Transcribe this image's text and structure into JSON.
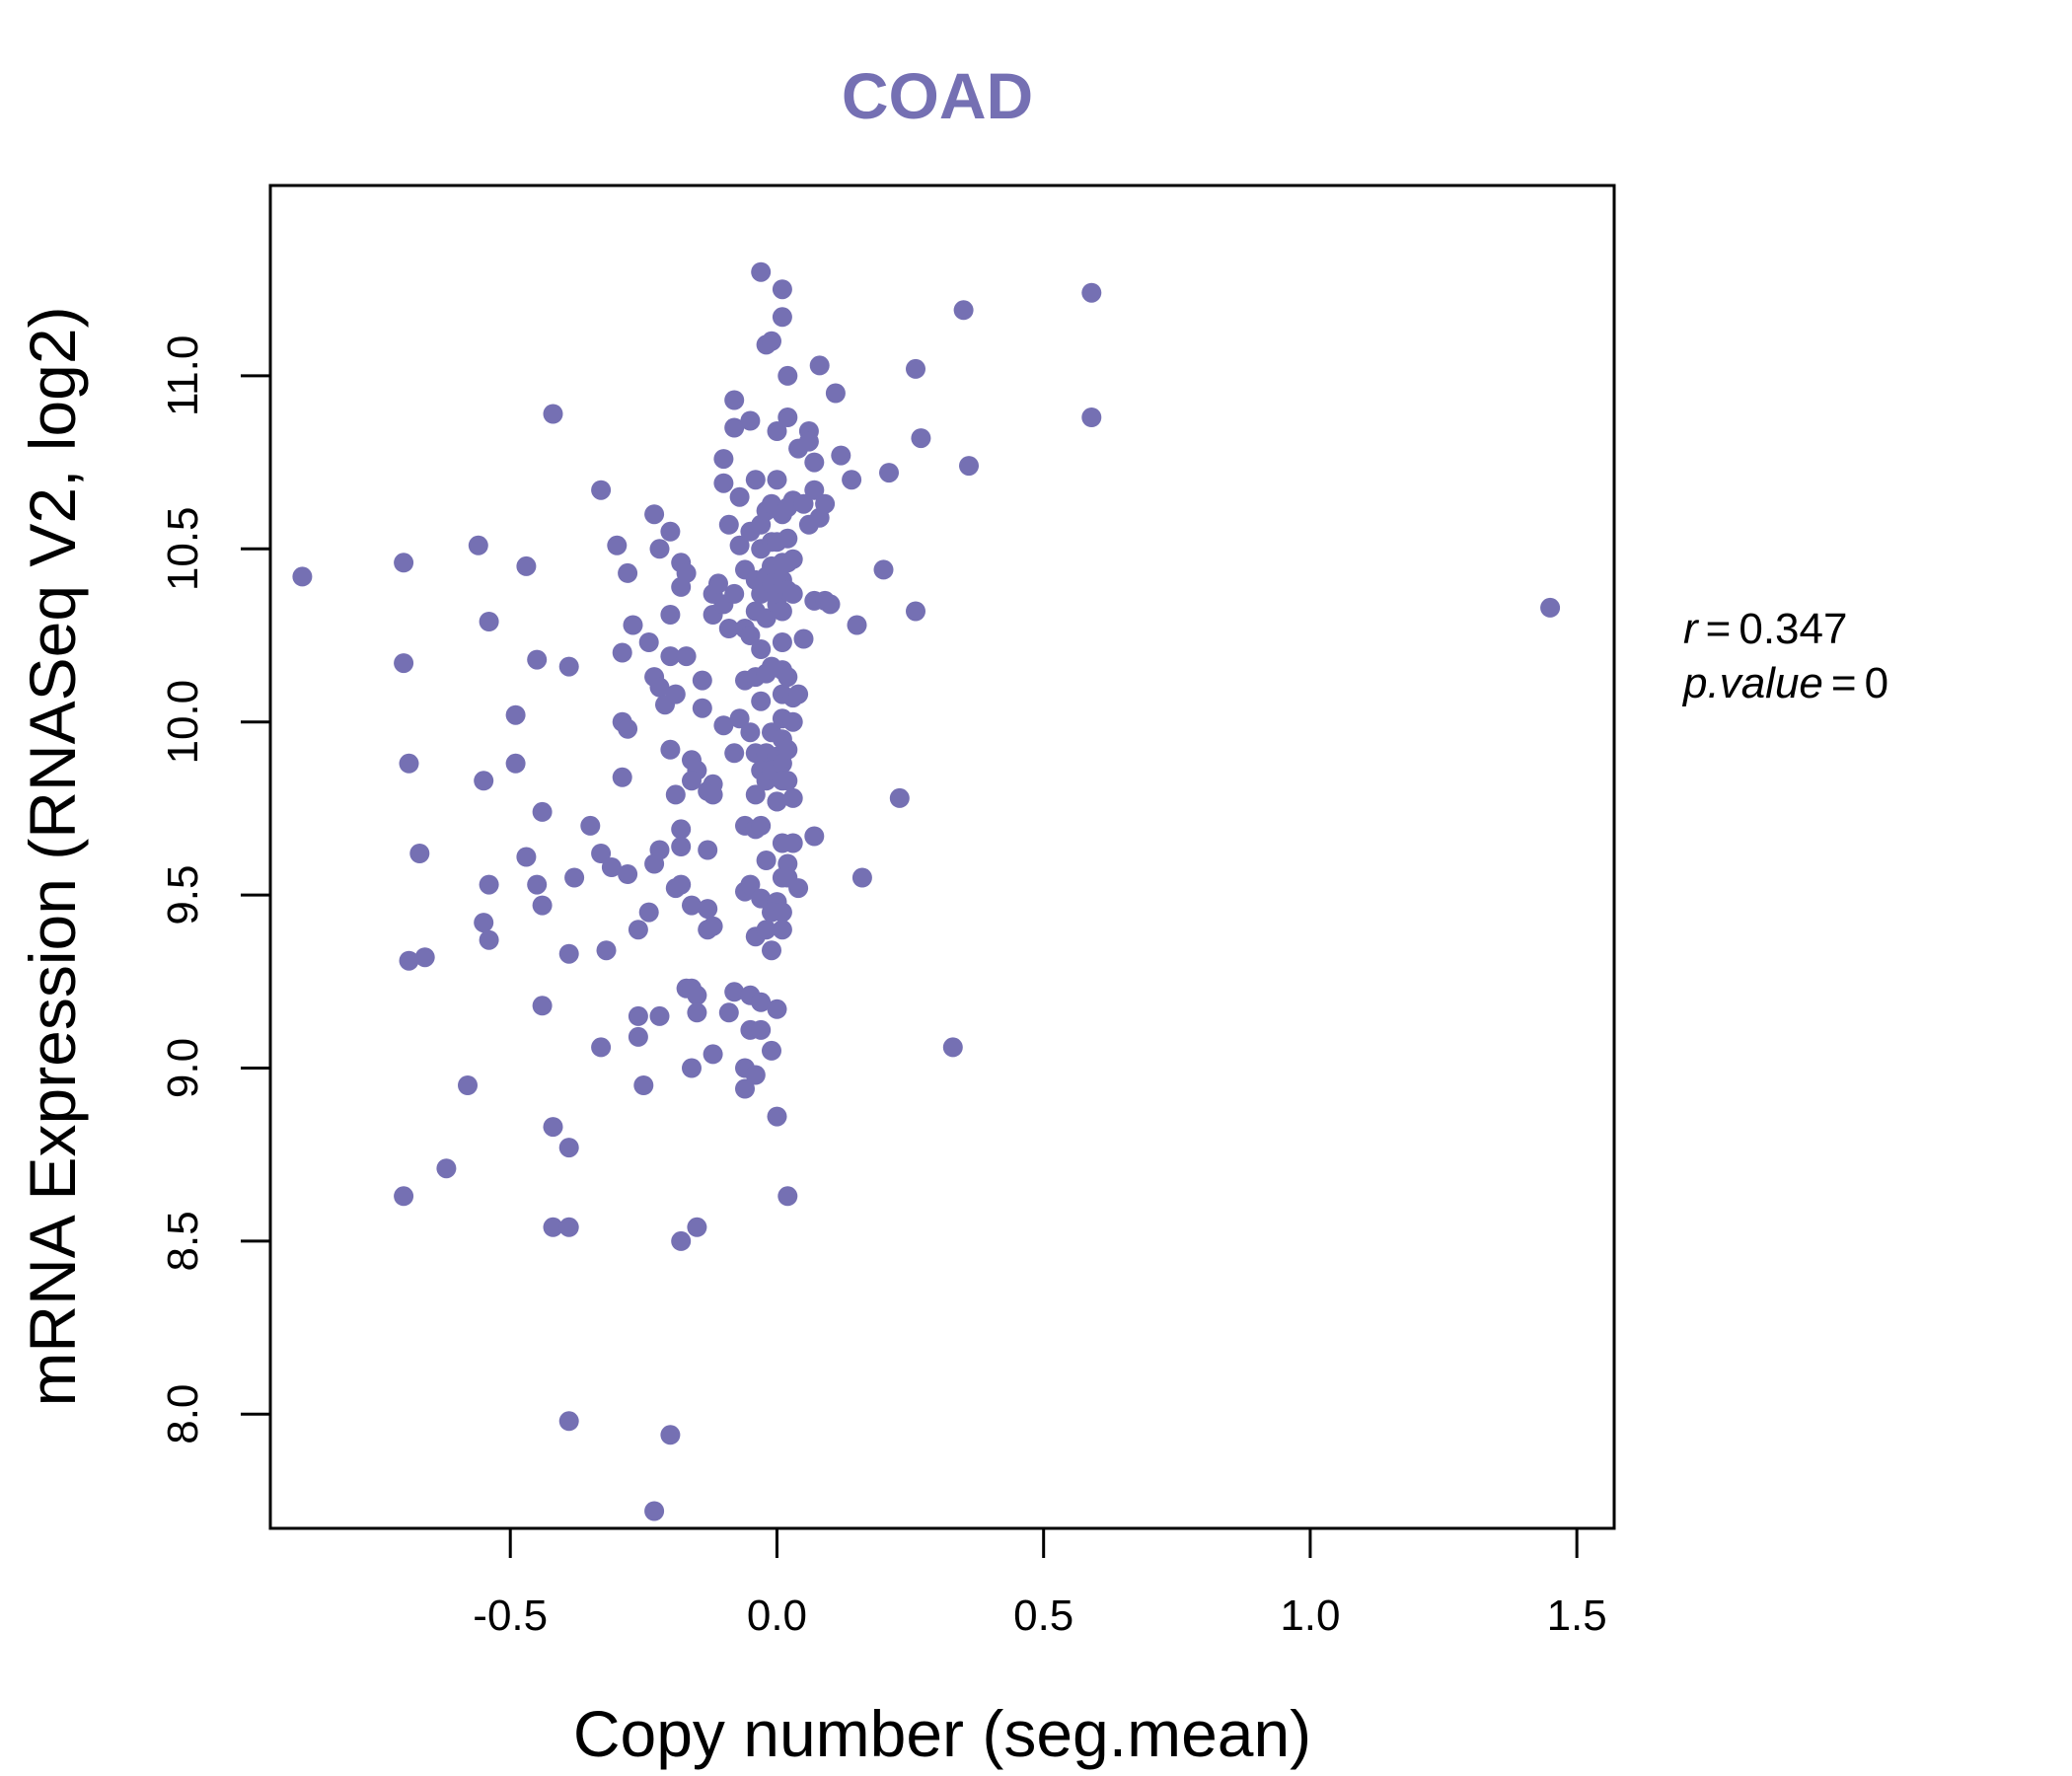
{
  "chart_data": {
    "type": "scatter",
    "title": "COAD",
    "xlabel": "Copy number (seg.mean)",
    "ylabel": "mRNA Expression (RNASeq V2, log2)",
    "xlim": [
      -0.95,
      1.57
    ],
    "ylim": [
      7.67,
      11.55
    ],
    "xticks": [
      -0.5,
      0.0,
      0.5,
      1.0,
      1.5
    ],
    "xtick_labels": [
      "-0.5",
      "0.0",
      "0.5",
      "1.0",
      "1.5"
    ],
    "yticks": [
      8.0,
      8.5,
      9.0,
      9.5,
      10.0,
      10.5,
      11.0
    ],
    "ytick_labels": [
      "8.0",
      "8.5",
      "9.0",
      "9.5",
      "10.0",
      "10.5",
      "11.0"
    ],
    "grid": false,
    "legend": "none",
    "stats": {
      "r_label": "r",
      "r_value": "0.347",
      "p_label": "p.value",
      "p_value": "0"
    },
    "colors": {
      "title": "#7570b3",
      "points": "#7570b3",
      "axis": "#000000"
    },
    "points": [
      [
        -0.89,
        10.42
      ],
      [
        -0.7,
        10.46
      ],
      [
        -0.7,
        10.17
      ],
      [
        -0.69,
        9.88
      ],
      [
        -0.67,
        9.62
      ],
      [
        -0.69,
        9.31
      ],
      [
        -0.66,
        9.32
      ],
      [
        -0.7,
        8.63
      ],
      [
        -0.62,
        8.71
      ],
      [
        -0.58,
        8.95
      ],
      [
        -0.56,
        10.51
      ],
      [
        -0.54,
        10.29
      ],
      [
        -0.55,
        9.83
      ],
      [
        -0.54,
        9.53
      ],
      [
        -0.55,
        9.42
      ],
      [
        -0.54,
        9.37
      ],
      [
        -0.47,
        10.45
      ],
      [
        -0.49,
        10.02
      ],
      [
        -0.49,
        9.88
      ],
      [
        -0.47,
        9.61
      ],
      [
        -0.45,
        10.18
      ],
      [
        -0.44,
        9.74
      ],
      [
        -0.45,
        9.53
      ],
      [
        -0.44,
        9.47
      ],
      [
        -0.44,
        9.18
      ],
      [
        -0.42,
        10.89
      ],
      [
        -0.42,
        8.83
      ],
      [
        -0.42,
        8.54
      ],
      [
        -0.39,
        10.16
      ],
      [
        -0.38,
        9.55
      ],
      [
        -0.39,
        9.33
      ],
      [
        -0.39,
        8.77
      ],
      [
        -0.39,
        8.54
      ],
      [
        -0.39,
        7.98
      ],
      [
        -0.33,
        10.67
      ],
      [
        -0.35,
        9.7
      ],
      [
        -0.33,
        9.62
      ],
      [
        -0.32,
        9.34
      ],
      [
        -0.33,
        9.06
      ],
      [
        -0.3,
        10.51
      ],
      [
        -0.29,
        10.2
      ],
      [
        -0.29,
        10.0
      ],
      [
        -0.29,
        9.84
      ],
      [
        -0.31,
        9.58
      ],
      [
        -0.28,
        10.43
      ],
      [
        -0.27,
        10.28
      ],
      [
        -0.28,
        9.98
      ],
      [
        -0.28,
        9.56
      ],
      [
        -0.26,
        9.4
      ],
      [
        -0.26,
        9.15
      ],
      [
        -0.26,
        9.09
      ],
      [
        -0.25,
        8.95
      ],
      [
        -0.24,
        10.23
      ],
      [
        -0.24,
        9.45
      ],
      [
        -0.23,
        10.6
      ],
      [
        -0.22,
        10.5
      ],
      [
        -0.23,
        10.13
      ],
      [
        -0.22,
        10.1
      ],
      [
        -0.21,
        10.05
      ],
      [
        -0.23,
        9.59
      ],
      [
        -0.22,
        9.63
      ],
      [
        -0.22,
        9.15
      ],
      [
        -0.23,
        7.72
      ],
      [
        -0.2,
        10.55
      ],
      [
        -0.2,
        10.31
      ],
      [
        -0.2,
        10.19
      ],
      [
        -0.19,
        10.08
      ],
      [
        -0.2,
        9.92
      ],
      [
        -0.19,
        9.79
      ],
      [
        -0.19,
        9.52
      ],
      [
        -0.2,
        7.94
      ],
      [
        -0.18,
        10.46
      ],
      [
        -0.18,
        10.39
      ],
      [
        -0.17,
        10.43
      ],
      [
        -0.17,
        10.19
      ],
      [
        -0.18,
        9.69
      ],
      [
        -0.18,
        9.64
      ],
      [
        -0.18,
        9.53
      ],
      [
        -0.17,
        9.23
      ],
      [
        -0.18,
        8.5
      ],
      [
        -0.16,
        9.89
      ],
      [
        -0.15,
        9.86
      ],
      [
        -0.16,
        9.83
      ],
      [
        -0.16,
        9.47
      ],
      [
        -0.16,
        9.23
      ],
      [
        -0.15,
        9.21
      ],
      [
        -0.16,
        9.0
      ],
      [
        -0.15,
        9.16
      ],
      [
        -0.15,
        8.54
      ],
      [
        -0.14,
        10.12
      ],
      [
        -0.14,
        10.04
      ],
      [
        -0.13,
        9.8
      ],
      [
        -0.13,
        9.46
      ],
      [
        -0.13,
        9.4
      ],
      [
        -0.12,
        10.37
      ],
      [
        -0.11,
        10.4
      ],
      [
        -0.12,
        10.31
      ],
      [
        -0.12,
        9.82
      ],
      [
        -0.12,
        9.79
      ],
      [
        -0.13,
        9.63
      ],
      [
        -0.12,
        9.41
      ],
      [
        -0.12,
        9.04
      ],
      [
        -0.1,
        10.76
      ],
      [
        -0.1,
        10.69
      ],
      [
        -0.1,
        10.34
      ],
      [
        -0.1,
        9.99
      ],
      [
        -0.08,
        10.93
      ],
      [
        -0.08,
        10.85
      ],
      [
        -0.09,
        10.57
      ],
      [
        -0.08,
        10.37
      ],
      [
        -0.09,
        10.27
      ],
      [
        -0.08,
        9.91
      ],
      [
        -0.09,
        9.16
      ],
      [
        -0.08,
        9.22
      ],
      [
        -0.07,
        10.65
      ],
      [
        -0.07,
        10.51
      ],
      [
        -0.06,
        10.44
      ],
      [
        -0.06,
        10.27
      ],
      [
        -0.06,
        10.12
      ],
      [
        -0.07,
        10.01
      ],
      [
        -0.06,
        9.7
      ],
      [
        -0.06,
        9.51
      ],
      [
        -0.06,
        9.0
      ],
      [
        -0.06,
        8.94
      ],
      [
        -0.05,
        10.87
      ],
      [
        -0.04,
        10.7
      ],
      [
        -0.05,
        10.55
      ],
      [
        -0.04,
        10.41
      ],
      [
        -0.04,
        10.32
      ],
      [
        -0.05,
        10.25
      ],
      [
        -0.04,
        10.13
      ],
      [
        -0.05,
        9.97
      ],
      [
        -0.04,
        9.91
      ],
      [
        -0.04,
        9.79
      ],
      [
        -0.04,
        9.69
      ],
      [
        -0.05,
        9.53
      ],
      [
        -0.04,
        9.38
      ],
      [
        -0.05,
        9.21
      ],
      [
        -0.05,
        9.11
      ],
      [
        -0.04,
        8.98
      ],
      [
        -0.03,
        10.57
      ],
      [
        -0.02,
        10.61
      ],
      [
        -0.03,
        10.5
      ],
      [
        -0.02,
        10.42
      ],
      [
        -0.03,
        10.37
      ],
      [
        -0.02,
        10.3
      ],
      [
        -0.03,
        10.21
      ],
      [
        -0.02,
        10.14
      ],
      [
        -0.03,
        10.06
      ],
      [
        -0.02,
        9.91
      ],
      [
        -0.03,
        9.86
      ],
      [
        -0.02,
        9.83
      ],
      [
        -0.03,
        9.7
      ],
      [
        -0.02,
        9.6
      ],
      [
        -0.03,
        9.49
      ],
      [
        -0.02,
        9.4
      ],
      [
        -0.03,
        9.19
      ],
      [
        -0.03,
        9.11
      ],
      [
        -0.03,
        11.3
      ],
      [
        -0.02,
        11.09
      ],
      [
        -0.01,
        11.1
      ],
      [
        -0.01,
        10.63
      ],
      [
        -0.01,
        10.52
      ],
      [
        -0.01,
        10.45
      ],
      [
        -0.01,
        10.4
      ],
      [
        0.0,
        10.34
      ],
      [
        -0.01,
        10.16
      ],
      [
        -0.01,
        9.97
      ],
      [
        0.0,
        9.9
      ],
      [
        -0.01,
        9.86
      ],
      [
        0.0,
        9.77
      ],
      [
        0.0,
        9.48
      ],
      [
        -0.01,
        9.45
      ],
      [
        -0.01,
        9.34
      ],
      [
        0.0,
        9.17
      ],
      [
        -0.01,
        9.05
      ],
      [
        0.0,
        8.86
      ],
      [
        0.0,
        10.84
      ],
      [
        0.0,
        10.7
      ],
      [
        0.01,
        10.6
      ],
      [
        0.0,
        10.52
      ],
      [
        0.01,
        10.46
      ],
      [
        0.01,
        10.41
      ],
      [
        0.0,
        10.37
      ],
      [
        0.01,
        10.32
      ],
      [
        0.01,
        10.23
      ],
      [
        0.01,
        10.15
      ],
      [
        0.01,
        10.08
      ],
      [
        0.01,
        10.01
      ],
      [
        0.01,
        9.95
      ],
      [
        0.01,
        9.88
      ],
      [
        0.01,
        9.83
      ],
      [
        0.0,
        9.77
      ],
      [
        0.01,
        9.65
      ],
      [
        0.01,
        9.55
      ],
      [
        0.01,
        9.45
      ],
      [
        0.01,
        9.4
      ],
      [
        0.01,
        11.25
      ],
      [
        0.01,
        11.17
      ],
      [
        0.02,
        11.0
      ],
      [
        0.02,
        10.88
      ],
      [
        0.02,
        10.62
      ],
      [
        0.02,
        10.53
      ],
      [
        0.02,
        10.46
      ],
      [
        0.02,
        10.38
      ],
      [
        0.02,
        10.13
      ],
      [
        0.02,
        9.92
      ],
      [
        0.02,
        9.83
      ],
      [
        0.02,
        9.59
      ],
      [
        0.02,
        9.55
      ],
      [
        0.02,
        8.63
      ],
      [
        0.03,
        10.64
      ],
      [
        0.03,
        10.47
      ],
      [
        0.03,
        10.37
      ],
      [
        0.03,
        10.07
      ],
      [
        0.03,
        10.0
      ],
      [
        0.03,
        9.78
      ],
      [
        0.03,
        9.65
      ],
      [
        0.04,
        10.79
      ],
      [
        0.04,
        10.08
      ],
      [
        0.04,
        9.52
      ],
      [
        0.05,
        10.63
      ],
      [
        0.05,
        10.24
      ],
      [
        0.06,
        10.84
      ],
      [
        0.06,
        10.81
      ],
      [
        0.06,
        10.57
      ],
      [
        0.07,
        10.75
      ],
      [
        0.07,
        10.67
      ],
      [
        0.07,
        10.35
      ],
      [
        0.07,
        9.67
      ],
      [
        0.08,
        11.03
      ],
      [
        0.08,
        10.59
      ],
      [
        0.09,
        10.63
      ],
      [
        0.09,
        10.35
      ],
      [
        0.1,
        10.34
      ],
      [
        0.11,
        10.95
      ],
      [
        0.12,
        10.77
      ],
      [
        0.14,
        10.7
      ],
      [
        0.15,
        10.28
      ],
      [
        0.16,
        9.55
      ],
      [
        0.2,
        10.44
      ],
      [
        0.21,
        10.72
      ],
      [
        0.23,
        9.78
      ],
      [
        0.26,
        11.02
      ],
      [
        0.26,
        10.32
      ],
      [
        0.27,
        10.82
      ],
      [
        0.33,
        9.06
      ],
      [
        0.35,
        11.19
      ],
      [
        0.36,
        10.74
      ],
      [
        0.59,
        11.24
      ],
      [
        0.59,
        10.88
      ],
      [
        1.45,
        10.33
      ]
    ]
  }
}
